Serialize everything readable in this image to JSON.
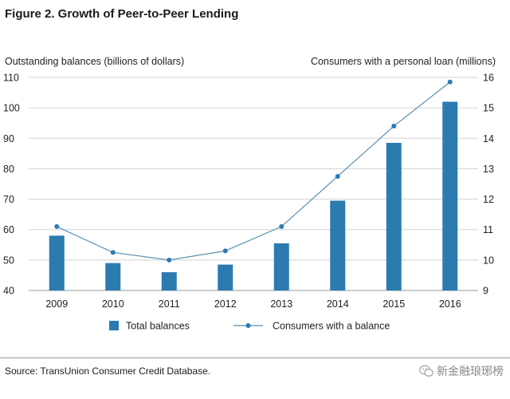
{
  "figure_title": "Figure 2. Growth of Peer-to-Peer Lending",
  "source": "Source: TransUnion Consumer Credit Database.",
  "watermark": "新金融琅琊榜",
  "colors": {
    "bar": "#2b7bb1",
    "line": "#5a8fb0",
    "marker": "#2b7bb1"
  },
  "chart_data": {
    "type": "bar",
    "categories": [
      "2009",
      "2010",
      "2011",
      "2012",
      "2013",
      "2014",
      "2015",
      "2016"
    ],
    "series": [
      {
        "name": "Total balances",
        "type": "bar",
        "axis": "left",
        "values": [
          58,
          49,
          46,
          48.5,
          55.5,
          69.5,
          88.5,
          102
        ]
      },
      {
        "name": "Consumers with a balance",
        "type": "line",
        "axis": "right",
        "values": [
          11.1,
          10.25,
          10.0,
          10.3,
          11.1,
          12.75,
          14.4,
          15.85
        ]
      }
    ],
    "ylabel_left": "Outstanding balances (billions of dollars)",
    "ylabel_right": "Consumers with a personal loan (millions)",
    "ylim_left": [
      40,
      110
    ],
    "ylim_right": [
      9,
      16
    ],
    "yticks_left": [
      "40",
      "50",
      "60",
      "70",
      "80",
      "90",
      "100",
      "110"
    ],
    "yticks_right": [
      "9",
      "10",
      "11",
      "12",
      "13",
      "14",
      "15",
      "16"
    ],
    "grid": "horizontal",
    "legend": "bottom"
  }
}
